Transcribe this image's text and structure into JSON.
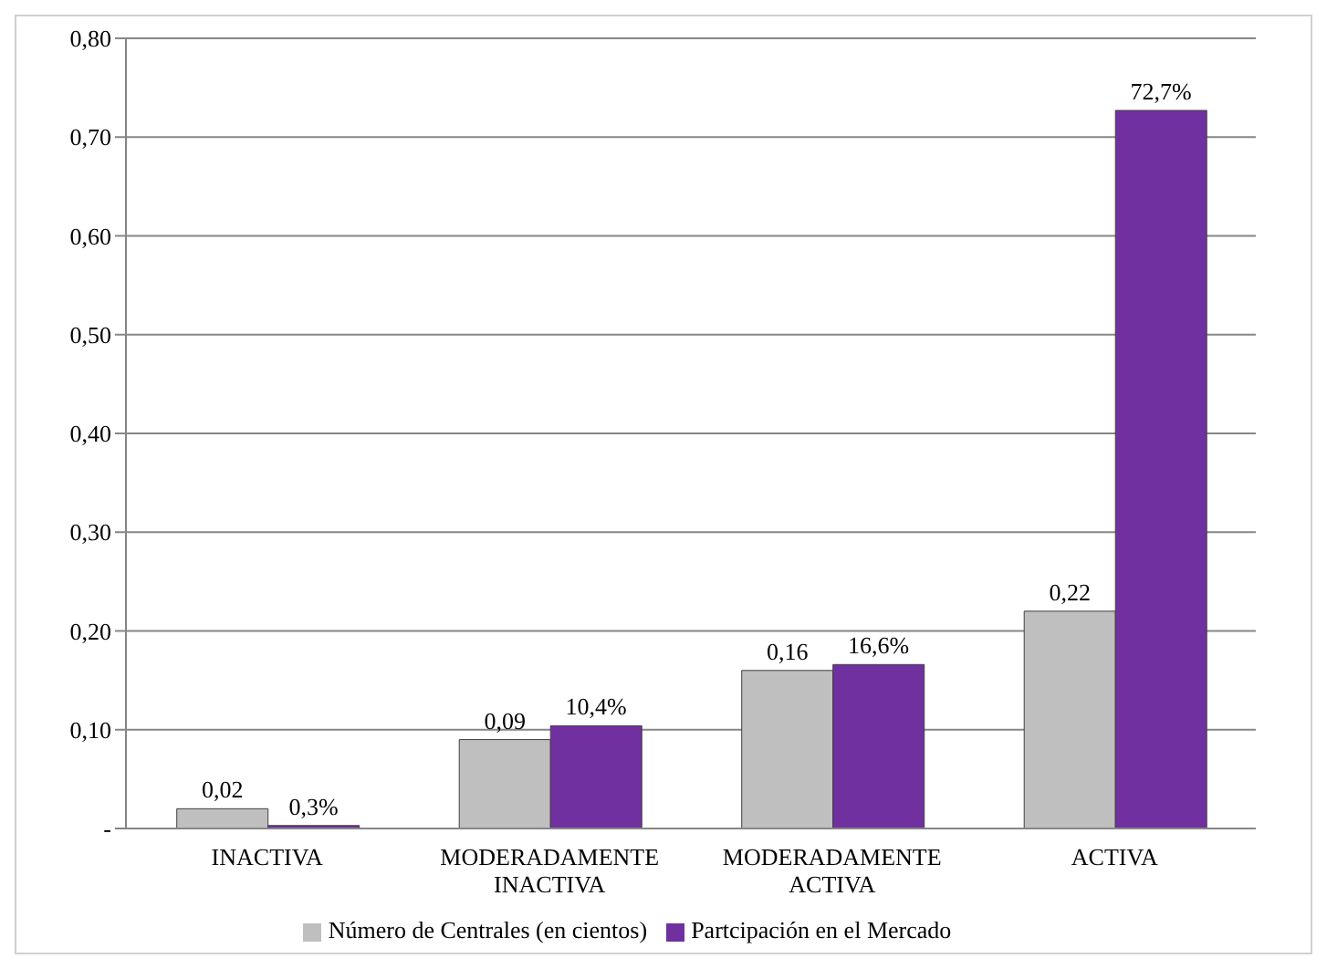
{
  "chart_data": {
    "type": "bar",
    "categories": [
      "INACTIVA",
      "MODERADAMENTE INACTIVA",
      "MODERADAMENTE ACTIVA",
      "ACTIVA"
    ],
    "series": [
      {
        "name": "Número de Centrales (en cientos)",
        "color": "#bfbfbf",
        "values": [
          0.02,
          0.09,
          0.16,
          0.22
        ],
        "value_labels": [
          "0,02",
          "0,09",
          "0,16",
          "0,22"
        ]
      },
      {
        "name": "Partcipación en el Mercado",
        "color": "#7030a0",
        "values": [
          0.003,
          0.104,
          0.166,
          0.727
        ],
        "value_labels": [
          "0,3%",
          "10,4%",
          "16,6%",
          "72,7%"
        ]
      }
    ],
    "ylim": [
      0,
      0.8
    ],
    "yticks": [
      {
        "value": 0,
        "label": "-"
      },
      {
        "value": 0.1,
        "label": "0,10"
      },
      {
        "value": 0.2,
        "label": "0,20"
      },
      {
        "value": 0.3,
        "label": "0,30"
      },
      {
        "value": 0.4,
        "label": "0,40"
      },
      {
        "value": 0.5,
        "label": "0,50"
      },
      {
        "value": 0.6,
        "label": "0,60"
      },
      {
        "value": 0.7,
        "label": "0,70"
      },
      {
        "value": 0.8,
        "label": "0,80"
      }
    ],
    "grid": "y",
    "legend": "bottom"
  }
}
